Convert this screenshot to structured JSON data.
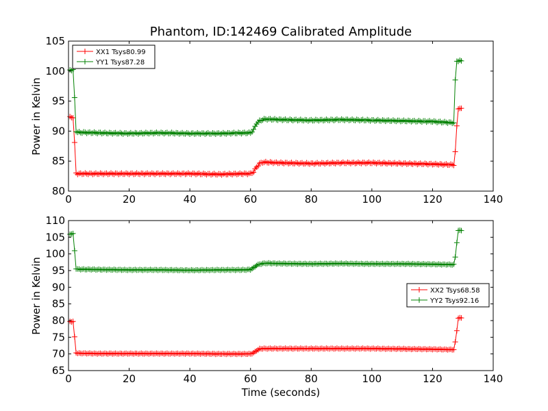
{
  "figure_title": "Phantom, ID:142469 Calibrated Amplitude",
  "chart_data": [
    {
      "type": "line",
      "title": "Phantom, ID:142469 Calibrated Amplitude",
      "xlabel": "",
      "ylabel": "Power in Kelvin",
      "xlim": [
        0,
        140
      ],
      "ylim": [
        80,
        105
      ],
      "xticks": [
        "0",
        "20",
        "40",
        "60",
        "80",
        "100",
        "120",
        "140"
      ],
      "yticks": [
        "80",
        "85",
        "90",
        "95",
        "100",
        "105"
      ],
      "legend_position": "upper-left",
      "marker": "+",
      "grid": false,
      "series": [
        {
          "name": "XX1 Tsys80.99",
          "color": "#ff0000",
          "x": [
            0.5,
            1.5,
            2.0,
            2.5,
            3,
            10,
            20,
            30,
            40,
            50,
            58,
            60,
            61,
            62,
            63,
            64,
            65,
            70,
            80,
            90,
            100,
            110,
            120,
            126,
            127,
            127.5,
            128,
            128.5,
            129,
            129.5
          ],
          "y": [
            92.3,
            92.3,
            88.0,
            83.0,
            82.9,
            82.9,
            82.9,
            82.9,
            82.9,
            82.8,
            82.9,
            82.9,
            83.2,
            84.0,
            84.6,
            84.8,
            84.8,
            84.7,
            84.6,
            84.7,
            84.7,
            84.6,
            84.5,
            84.4,
            84.4,
            86.5,
            90.8,
            93.8,
            93.8,
            93.8
          ]
        },
        {
          "name": "YY1 Tsys87.28",
          "color": "#008000",
          "x": [
            0.5,
            1.0,
            1.5,
            2.0,
            2.5,
            3,
            10,
            20,
            30,
            40,
            50,
            58,
            60,
            61,
            62,
            63,
            64,
            65,
            70,
            80,
            90,
            100,
            110,
            120,
            126,
            127,
            127.5,
            128,
            128.5,
            129,
            129.5
          ],
          "y": [
            100.2,
            100.2,
            100.2,
            95.5,
            90.0,
            89.8,
            89.7,
            89.6,
            89.7,
            89.6,
            89.6,
            89.7,
            89.7,
            90.2,
            91.3,
            91.7,
            91.9,
            92.0,
            91.9,
            91.8,
            91.9,
            91.8,
            91.7,
            91.6,
            91.4,
            91.4,
            98.4,
            101.7,
            101.7,
            101.7,
            101.7
          ]
        }
      ]
    },
    {
      "type": "line",
      "title": "",
      "xlabel": "Time (seconds)",
      "ylabel": "Power in Kelvin",
      "xlim": [
        0,
        140
      ],
      "ylim": [
        65,
        110
      ],
      "xticks": [
        "0",
        "20",
        "40",
        "60",
        "80",
        "100",
        "120",
        "140"
      ],
      "yticks": [
        "65",
        "70",
        "75",
        "80",
        "85",
        "90",
        "95",
        "100",
        "105",
        "110"
      ],
      "legend_position": "center-right",
      "marker": "+",
      "grid": false,
      "series": [
        {
          "name": "XX2 Tsys68.58",
          "color": "#ff0000",
          "x": [
            0.5,
            1.5,
            2.0,
            2.5,
            3,
            10,
            20,
            30,
            40,
            50,
            58,
            60,
            61,
            62,
            63,
            64,
            65,
            70,
            80,
            90,
            100,
            110,
            120,
            126,
            127,
            127.5,
            128,
            128.5,
            129,
            129.5
          ],
          "y": [
            79.7,
            79.7,
            75.0,
            70.4,
            70.2,
            70.1,
            70.1,
            70.1,
            70.1,
            70.0,
            70.0,
            70.0,
            70.3,
            71.0,
            71.5,
            71.6,
            71.6,
            71.6,
            71.6,
            71.6,
            71.6,
            71.5,
            71.4,
            71.3,
            71.3,
            73.5,
            77.0,
            80.8,
            80.8,
            80.8
          ]
        },
        {
          "name": "YY2 Tsys92.16",
          "color": "#008000",
          "x": [
            0.5,
            1.0,
            1.5,
            2.0,
            2.5,
            3,
            10,
            20,
            30,
            40,
            50,
            58,
            60,
            61,
            62,
            63,
            64,
            65,
            70,
            80,
            90,
            100,
            110,
            120,
            126,
            127,
            127.5,
            128,
            128.5,
            129,
            129.5
          ],
          "y": [
            106.0,
            106.0,
            106.0,
            101.0,
            95.6,
            95.4,
            95.3,
            95.2,
            95.2,
            95.1,
            95.2,
            95.2,
            95.3,
            95.8,
            96.6,
            96.9,
            97.1,
            97.2,
            97.1,
            97.0,
            97.1,
            97.0,
            97.0,
            96.9,
            96.8,
            96.8,
            99.0,
            103.5,
            107.0,
            107.0,
            107.0
          ]
        }
      ]
    }
  ]
}
